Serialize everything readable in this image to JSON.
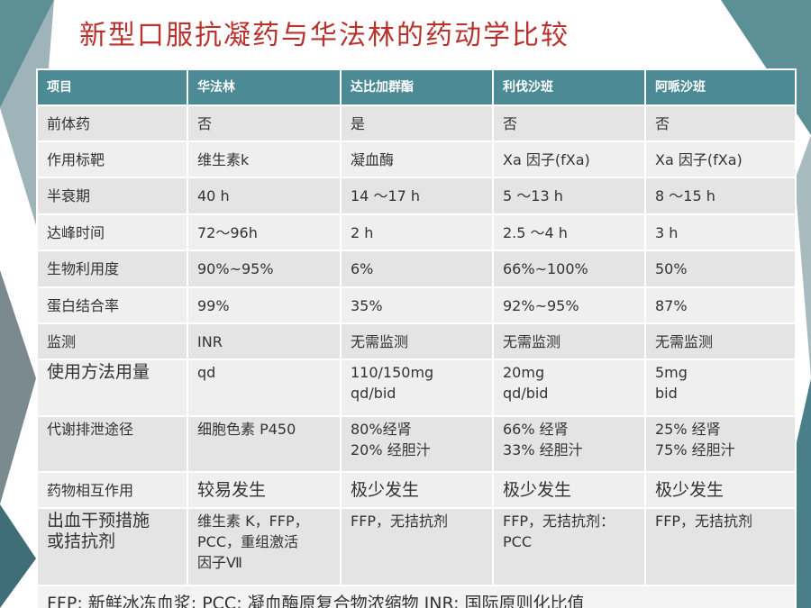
{
  "title": "新型口服抗凝药与华法林的药动学比较",
  "table": {
    "header": [
      "项目",
      "华法林",
      "达比加群酯",
      "利伐沙班",
      "阿哌沙班"
    ],
    "rows": [
      [
        "前体药",
        "否",
        "是",
        "否",
        "否"
      ],
      [
        "作用标靶",
        "维生素k",
        "凝血酶",
        "Xa 因子(fXa)",
        "Xa 因子(fXa)"
      ],
      [
        "半衰期",
        "40 h",
        "14 ～17 h",
        "5 ～13 h",
        "8 ～15 h"
      ],
      [
        "达峰时间",
        "72～96h",
        "2 h",
        "2.5 ～4 h",
        "3 h"
      ],
      [
        "生物利用度",
        "90%~95%",
        "6%",
        "66%~100%",
        "50%"
      ],
      [
        "蛋白结合率",
        "99%",
        "35%",
        "92%~95%",
        "87%"
      ],
      [
        "监测",
        "INR",
        "无需监测",
        "无需监测",
        "无需监测"
      ],
      [
        "使用方法用量",
        "qd",
        "110/150mg\nqd/bid",
        "20mg\nqd/bid",
        "5mg\nbid"
      ],
      [
        "代谢排泄途径",
        "细胞色素 P450",
        "80%经肾\n20% 经胆汁",
        "66% 经肾\n33% 经胆汁",
        "25% 经肾\n75% 经胆汁"
      ],
      [
        "药物相互作用",
        "较易发生",
        "极少发生",
        "极少发生",
        "极少发生"
      ],
      [
        "出血干预措施\n或拮抗剂",
        "维生素 K，FFP，\nPCC，重组激活\n因子Ⅶ",
        "FFP，无拮抗剂",
        "FFP，无拮抗剂：\nPCC",
        "FFP，无拮抗剂"
      ]
    ],
    "footnote": "FFP: 新鲜冰冻血浆; PCC: 凝血酶原复合物浓缩物 INR: 国际原则化比值"
  }
}
